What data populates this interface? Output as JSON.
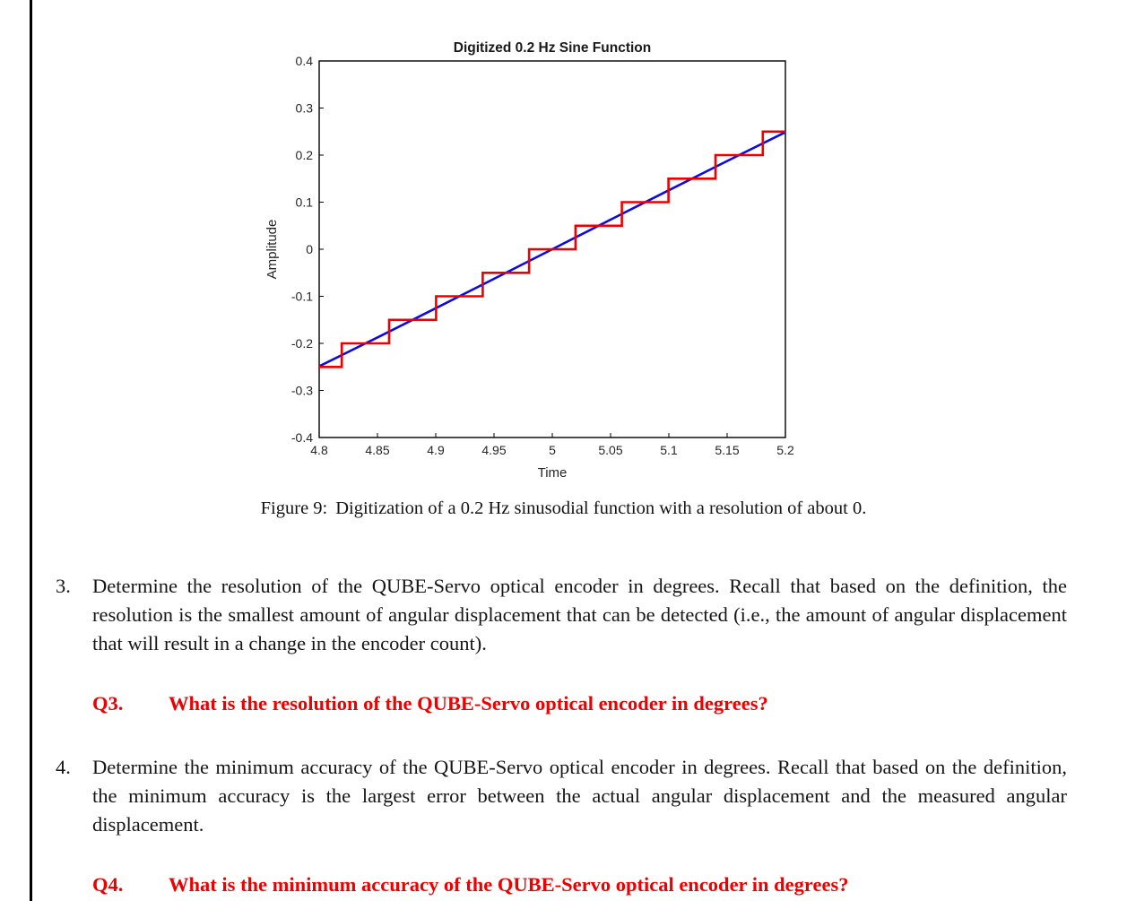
{
  "figure": {
    "caption_label": "Figure 9:",
    "caption_text": "Digitization of a 0.2 Hz sinusodial function with a resolution of about 0."
  },
  "chart_data": {
    "type": "line",
    "title": "Digitized 0.2 Hz Sine Function",
    "xlabel": "Time",
    "ylabel": "Amplitude",
    "xlim": [
      4.8,
      5.2
    ],
    "ylim": [
      -0.4,
      0.4
    ],
    "grid": false,
    "legend": "none",
    "x_ticks": [
      4.8,
      4.85,
      4.9,
      4.95,
      5,
      5.05,
      5.1,
      5.15,
      5.2
    ],
    "x_tick_labels": [
      "4.8",
      "4.85",
      "4.9",
      "4.95",
      "5",
      "5.05",
      "5.1",
      "5.15",
      "5.2"
    ],
    "y_ticks": [
      -0.4,
      -0.3,
      -0.2,
      -0.1,
      0,
      0.1,
      0.2,
      0.3,
      0.4
    ],
    "y_tick_labels": [
      "-0.4",
      "-0.3",
      "-0.2",
      "-0.1",
      "0",
      "0.1",
      "0.2",
      "0.3",
      "0.4"
    ],
    "series": [
      {
        "name": "analog-sine-0.2hz",
        "type": "line",
        "color": "#0b0bdf",
        "x": [
          4.8,
          4.85,
          4.9,
          4.95,
          5.0,
          5.05,
          5.1,
          5.15,
          5.2
        ],
        "y": [
          -0.2487,
          -0.1874,
          -0.1253,
          -0.0628,
          0.0,
          0.0628,
          0.1253,
          0.1874,
          0.2487
        ]
      },
      {
        "name": "digitized-staircase",
        "type": "staircase",
        "color": "#ee0000",
        "resolution": 0.05,
        "step_edges_t": [
          4.8,
          4.8194,
          4.86,
          4.9003,
          4.9403,
          4.9801,
          5.0199,
          5.0597,
          5.0997,
          5.14,
          5.1806,
          5.2
        ],
        "step_levels": [
          -0.25,
          -0.2,
          -0.15,
          -0.1,
          -0.05,
          0,
          0.05,
          0.1,
          0.15,
          0.2,
          0.25
        ]
      }
    ]
  },
  "content": {
    "item3": {
      "number": "3.",
      "text": "Determine the resolution of the QUBE-Servo optical encoder in degrees. Recall that based on the definition, the resolution is the smallest amount of angular displacement that can be detected (i.e., the amount of angular displacement that will result in a change in the encoder count)."
    },
    "q3": {
      "label": "Q3.",
      "text": "What is the resolution of the QUBE-Servo optical encoder in degrees?"
    },
    "item4": {
      "number": "4.",
      "text": "Determine the minimum accuracy of the QUBE-Servo optical encoder in degrees. Recall that based on the definition, the minimum accuracy is the largest error between the actual angular displacement and the measured angular displacement."
    },
    "q4": {
      "label": "Q4.",
      "text": "What is the minimum accuracy of the QUBE-Servo optical encoder in degrees?"
    }
  },
  "colors": {
    "question_red": "#ee0000",
    "sine_blue": "#0b0bdf",
    "staircase_red": "#ee0000",
    "text": "#161616"
  }
}
